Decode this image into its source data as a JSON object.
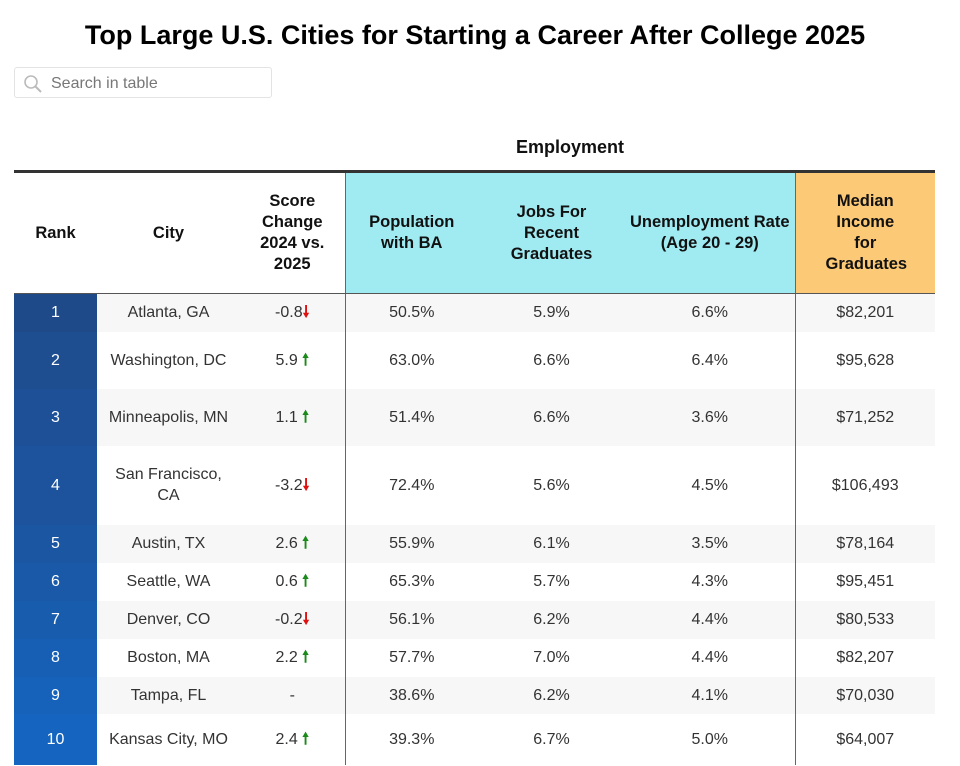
{
  "title": "Top Large U.S. Cities for Starting a Career After College 2025",
  "search": {
    "placeholder": "Search in table",
    "icon": "search-icon"
  },
  "group_header": "Employment",
  "columns": [
    "Rank",
    "City",
    "Score Change 2024 vs. 2025",
    "Population with BA",
    "Jobs For Recent Graduates",
    "Unemployment Rate (Age 20 - 29)",
    "Median Income for Graduates"
  ],
  "colors": {
    "rank_top": "#1f4a8a",
    "rank_bottom": "#1565c0",
    "employment_header": "#a0eaf2",
    "income_header": "#fcc976",
    "up": "#1a8a1a",
    "down": "#e01010"
  },
  "rows": [
    {
      "rank": "1",
      "city": "Atlanta, GA",
      "change": "-0.8",
      "dir": "down",
      "pop": "50.5%",
      "jobs": "5.9%",
      "unemp": "6.6%",
      "income": "$82,201"
    },
    {
      "rank": "2",
      "city": "Washington, DC",
      "change": "5.9",
      "dir": "up",
      "pop": "63.0%",
      "jobs": "6.6%",
      "unemp": "6.4%",
      "income": "$95,628"
    },
    {
      "rank": "3",
      "city": "Minneapolis, MN",
      "change": "1.1",
      "dir": "up",
      "pop": "51.4%",
      "jobs": "6.6%",
      "unemp": "3.6%",
      "income": "$71,252"
    },
    {
      "rank": "4",
      "city": "San Francisco, CA",
      "change": "-3.2",
      "dir": "down",
      "pop": "72.4%",
      "jobs": "5.6%",
      "unemp": "4.5%",
      "income": "$106,493"
    },
    {
      "rank": "5",
      "city": "Austin, TX",
      "change": "2.6",
      "dir": "up",
      "pop": "55.9%",
      "jobs": "6.1%",
      "unemp": "3.5%",
      "income": "$78,164"
    },
    {
      "rank": "6",
      "city": "Seattle, WA",
      "change": "0.6",
      "dir": "up",
      "pop": "65.3%",
      "jobs": "5.7%",
      "unemp": "4.3%",
      "income": "$95,451"
    },
    {
      "rank": "7",
      "city": "Denver, CO",
      "change": "-0.2",
      "dir": "down",
      "pop": "56.1%",
      "jobs": "6.2%",
      "unemp": "4.4%",
      "income": "$80,533"
    },
    {
      "rank": "8",
      "city": "Boston, MA",
      "change": "2.2",
      "dir": "up",
      "pop": "57.7%",
      "jobs": "7.0%",
      "unemp": "4.4%",
      "income": "$82,207"
    },
    {
      "rank": "9",
      "city": "Tampa, FL",
      "change": "-",
      "dir": "none",
      "pop": "38.6%",
      "jobs": "6.2%",
      "unemp": "4.1%",
      "income": "$70,030"
    },
    {
      "rank": "10",
      "city": "Kansas City, MO",
      "change": "2.4",
      "dir": "up",
      "pop": "39.3%",
      "jobs": "6.7%",
      "unemp": "5.0%",
      "income": "$64,007"
    }
  ]
}
